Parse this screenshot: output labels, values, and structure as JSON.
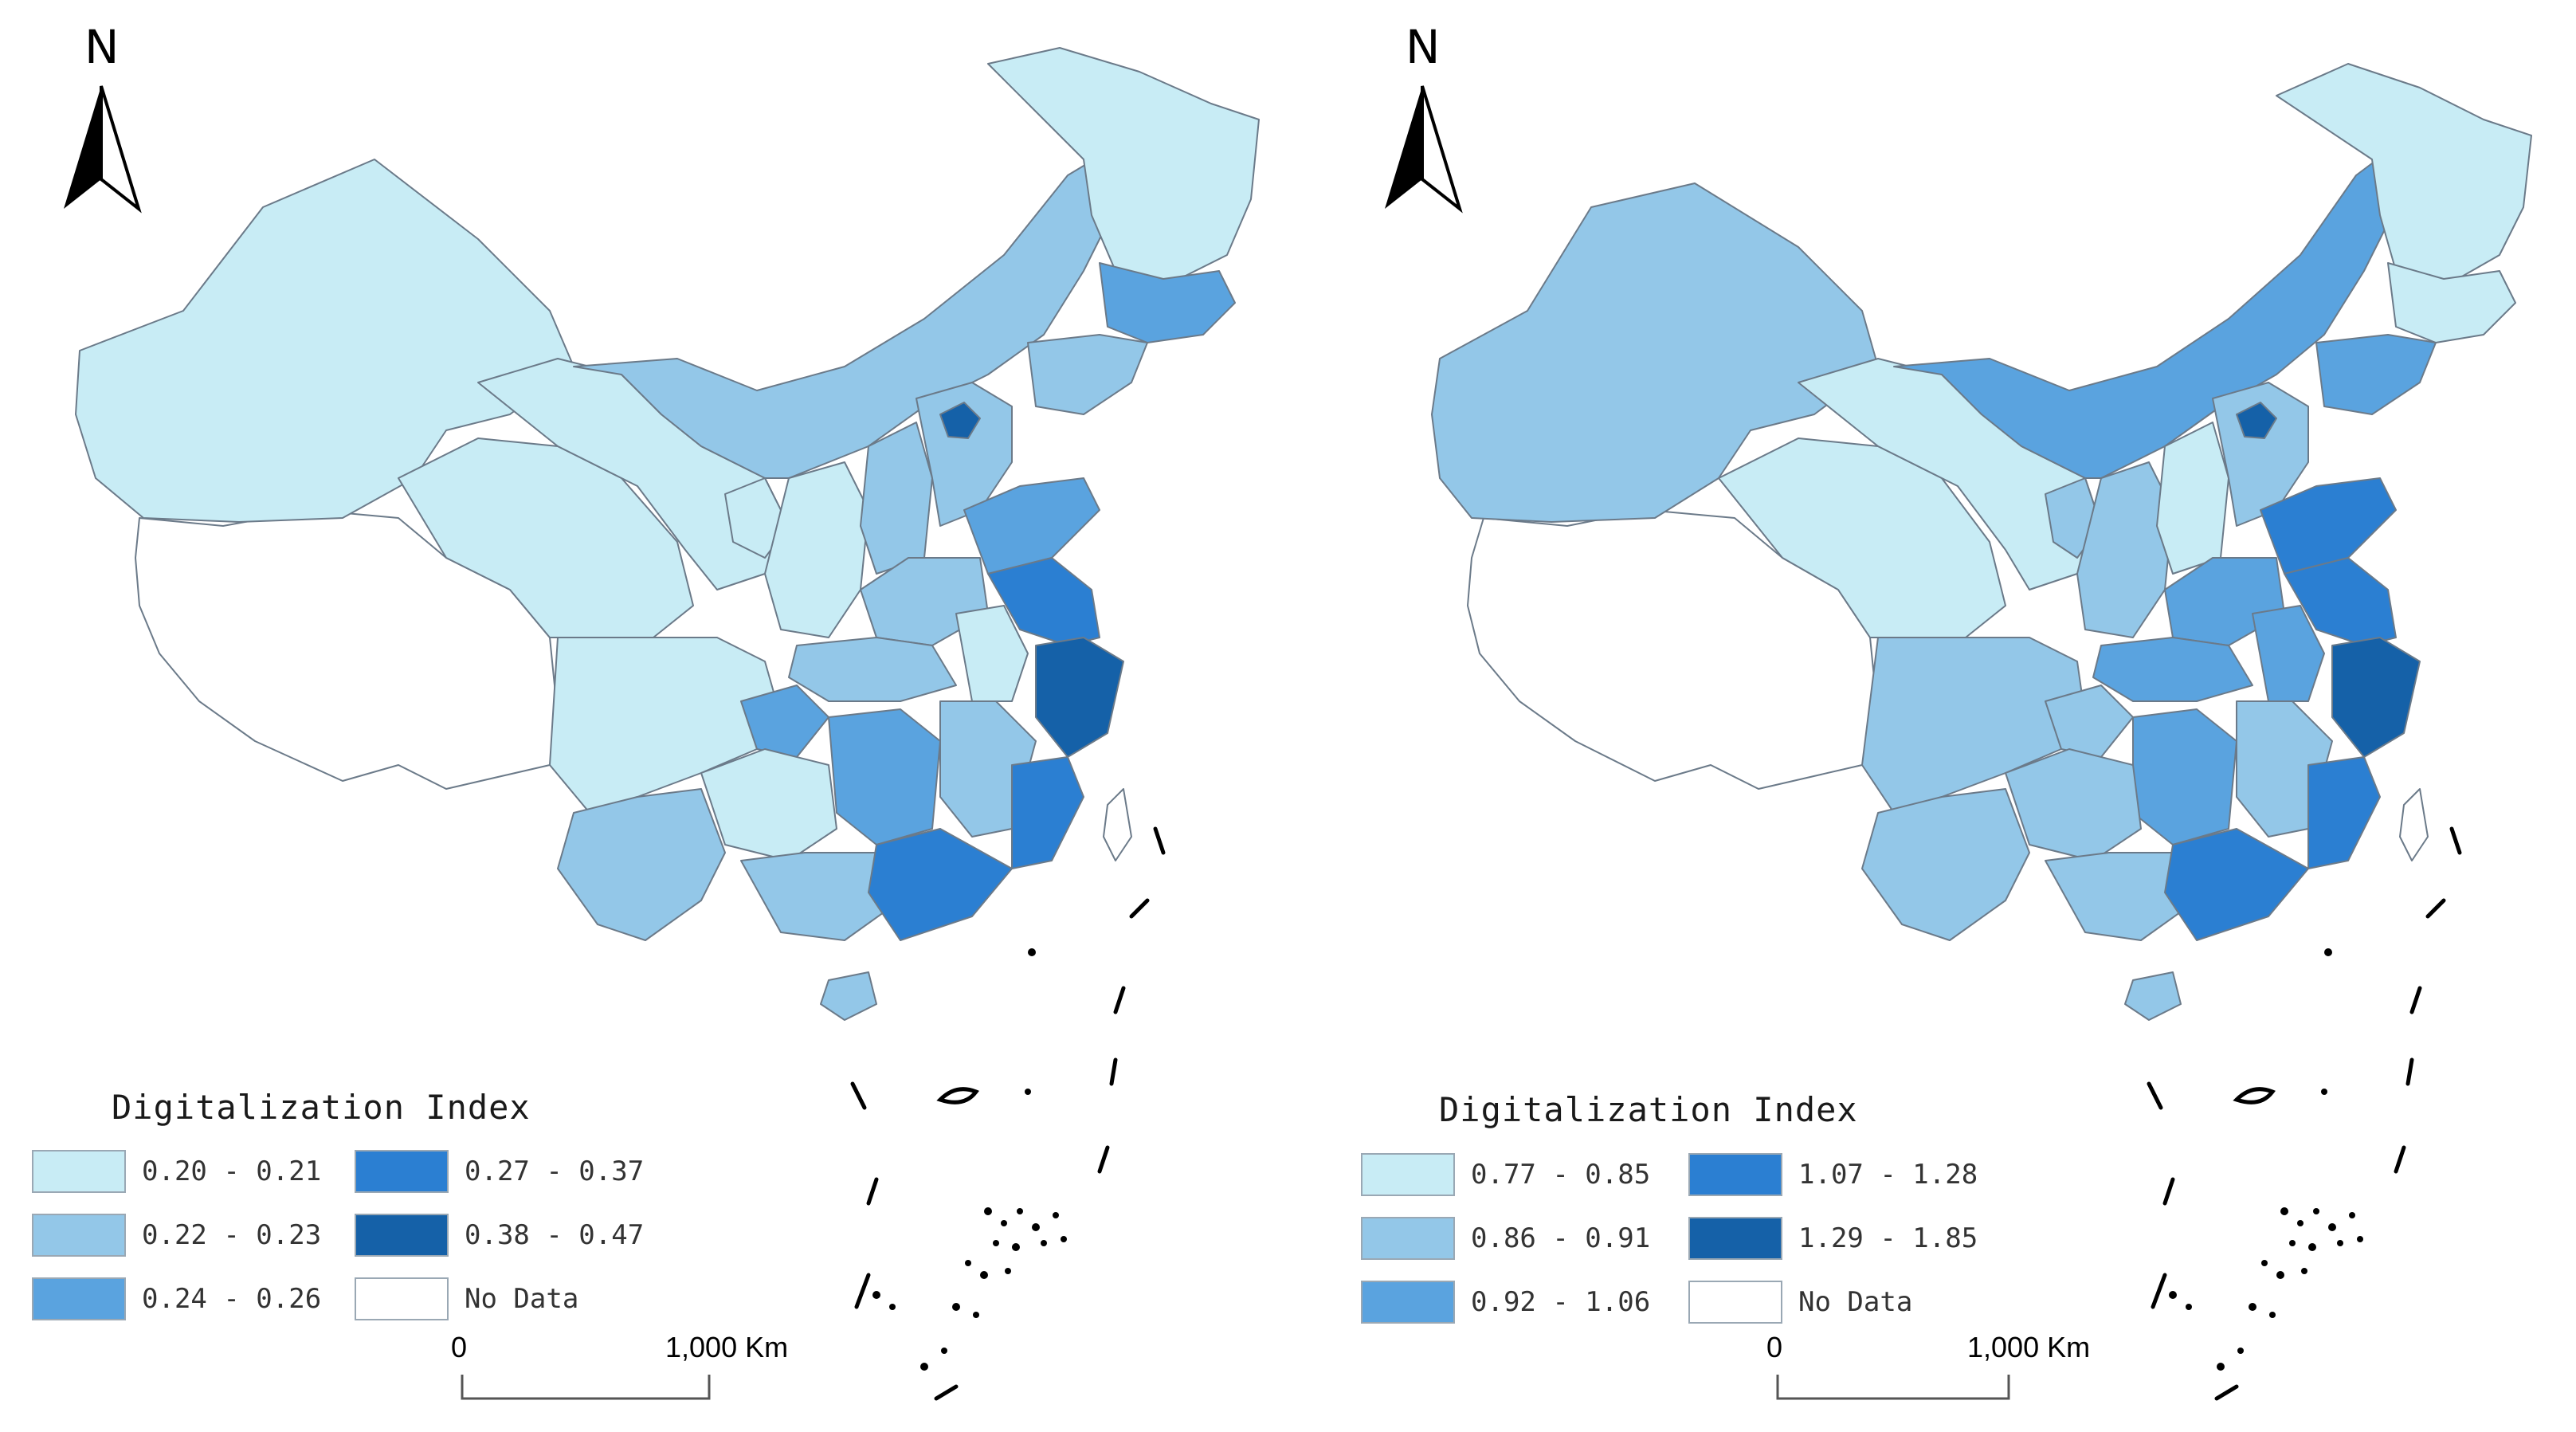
{
  "maps": [
    {
      "north_label": "N",
      "legend": {
        "title": "Digitalization Index",
        "classes": [
          {
            "label": "0.20 - 0.21",
            "color": "#c8ecf5"
          },
          {
            "label": "0.22 - 0.23",
            "color": "#93c7e8"
          },
          {
            "label": "0.24 - 0.26",
            "color": "#5aa3df"
          },
          {
            "label": "0.27 - 0.37",
            "color": "#2b7fd2"
          },
          {
            "label": "0.38 - 0.47",
            "color": "#1561a8"
          },
          {
            "label": "No Data",
            "color": "#ffffff"
          }
        ]
      },
      "scale_bar": {
        "start_label": "0",
        "end_label": "1,000 Km"
      }
    },
    {
      "north_label": "N",
      "legend": {
        "title": "Digitalization Index",
        "classes": [
          {
            "label": "0.77 - 0.85",
            "color": "#c8ecf5"
          },
          {
            "label": "0.86 - 0.91",
            "color": "#93c7e8"
          },
          {
            "label": "0.92 - 1.06",
            "color": "#5aa3df"
          },
          {
            "label": "1.07 - 1.28",
            "color": "#2b7fd2"
          },
          {
            "label": "1.29 - 1.85",
            "color": "#1561a8"
          },
          {
            "label": "No Data",
            "color": "#ffffff"
          }
        ]
      },
      "scale_bar": {
        "start_label": "0",
        "end_label": "1,000 Km"
      }
    }
  ]
}
